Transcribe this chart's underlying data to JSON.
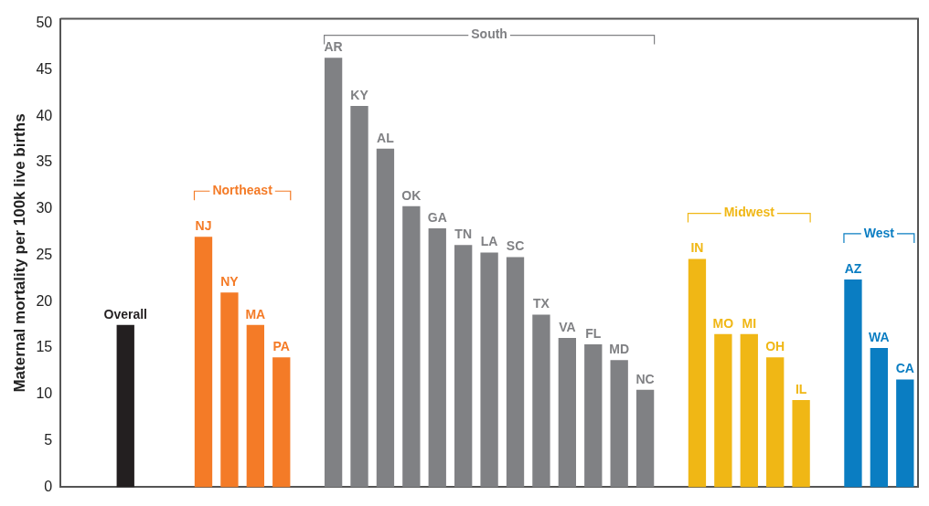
{
  "chart_data": {
    "type": "bar",
    "ylabel": "Maternal mortality per 100k live births",
    "categories": [
      null,
      null,
      "Overall",
      null,
      null,
      "NJ",
      "NY",
      "MA",
      "PA",
      null,
      "AR",
      "KY",
      "AL",
      "OK",
      "GA",
      "TN",
      "LA",
      "SC",
      "TX",
      "VA",
      "FL",
      "MD",
      "NC",
      null,
      "IN",
      "MO",
      "MI",
      "OH",
      "IL",
      null,
      "AZ",
      "WA",
      "CA"
    ],
    "values": [
      null,
      null,
      17.5,
      null,
      null,
      27,
      21,
      17.5,
      14,
      null,
      46.3,
      41.1,
      36.5,
      30.3,
      27.9,
      26.1,
      25.3,
      24.8,
      18.6,
      16.1,
      15.4,
      13.7,
      10.5,
      null,
      24.6,
      16.5,
      16.5,
      14,
      9.4,
      null,
      22.4,
      15,
      11.6
    ],
    "colors": [
      "#231f20",
      "#231f20",
      "#231f20",
      "#231f20",
      "#231f20",
      "#f47b27",
      "#f47b27",
      "#f47b27",
      "#f47b27",
      "#808184",
      "#808184",
      "#808184",
      "#808184",
      "#808184",
      "#808184",
      "#808184",
      "#808184",
      "#808184",
      "#808184",
      "#808184",
      "#808184",
      "#808184",
      "#808184",
      "#f0b715",
      "#f0b715",
      "#f0b715",
      "#f0b715",
      "#f0b715",
      "#f0b715",
      "#0a7dc2",
      "#0a7dc2",
      "#0a7dc2",
      "#0a7dc2"
    ],
    "ylim": [
      0,
      50.5
    ],
    "yticks": [
      0,
      5,
      10,
      15,
      20,
      25,
      30,
      35,
      40,
      45,
      50
    ],
    "grid": false,
    "tick_labels": "y",
    "annotations": [
      "Northeast",
      "South",
      "Midwest",
      "West"
    ]
  }
}
